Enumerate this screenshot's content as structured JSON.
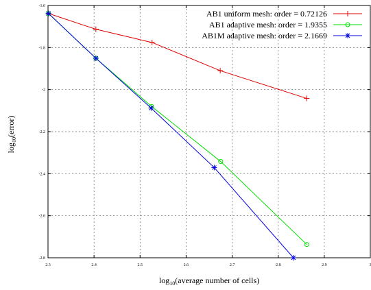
{
  "chart_data": {
    "type": "line",
    "xlabel": {
      "base": "log",
      "sub": "10",
      "rest": "(average number of cells)"
    },
    "ylabel": {
      "base": "log",
      "sub": "10",
      "rest": "(error)"
    },
    "xlim": [
      2.3,
      3.0
    ],
    "ylim": [
      -2.8,
      -1.6
    ],
    "x_ticks": [
      2.3,
      2.4,
      2.5,
      2.6,
      2.7,
      2.8,
      2.9,
      3.0
    ],
    "x_tick_labels": [
      "2.3",
      "2.4",
      "2.5",
      "2.6",
      "2.7",
      "2.8",
      "2.9",
      "3"
    ],
    "y_ticks": [
      -2.8,
      -2.6,
      -2.4,
      -2.2,
      -2.0,
      -1.8,
      -1.6
    ],
    "y_tick_labels": [
      "-2.8",
      "-2.6",
      "-2.4",
      "-2.2",
      "-2",
      "-1.8",
      "-1.6"
    ],
    "grid": true,
    "legend_position": "top-right",
    "series": [
      {
        "name": "AB1  uniform  mesh: order =  0.72126",
        "color": "#e00000",
        "marker": "plus",
        "x": [
          2.301,
          2.404,
          2.526,
          2.674,
          2.862
        ],
        "y": [
          -1.638,
          -1.713,
          -1.776,
          -1.91,
          -2.042
        ]
      },
      {
        "name": "AB1  adaptive mesh: order = 1.9355",
        "color": "#00e000",
        "marker": "circle",
        "x": [
          2.301,
          2.404,
          2.525,
          2.675,
          2.862
        ],
        "y": [
          -1.638,
          -1.851,
          -2.08,
          -2.342,
          -2.737
        ]
      },
      {
        "name": "AB1M adaptive mesh: order =  2.1669",
        "color": "#0000e0",
        "marker": "star",
        "x": [
          2.301,
          2.404,
          2.524,
          2.661,
          2.833
        ],
        "y": [
          -1.638,
          -1.851,
          -2.088,
          -2.371,
          -2.8
        ]
      }
    ]
  }
}
